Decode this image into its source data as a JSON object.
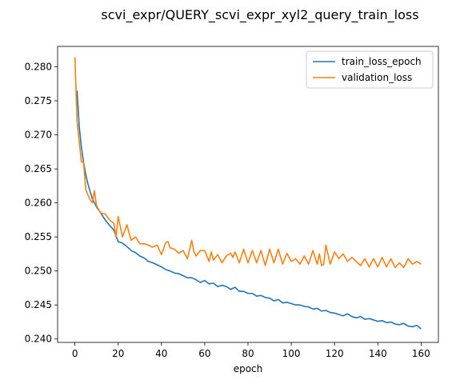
{
  "chart_data": {
    "type": "line",
    "title": "scvi_expr/QUERY_scvi_expr_xyl2_query_train_loss",
    "xlabel": "epoch",
    "ylabel": "",
    "xlim": [
      -8,
      168
    ],
    "ylim": [
      0.2395,
      0.283
    ],
    "xticks": [
      0,
      20,
      40,
      60,
      80,
      100,
      120,
      140,
      160
    ],
    "yticks": [
      0.24,
      0.245,
      0.25,
      0.255,
      0.26,
      0.265,
      0.27,
      0.275,
      0.28
    ],
    "ytick_labels": [
      "0.240",
      "0.245",
      "0.250",
      "0.255",
      "0.260",
      "0.265",
      "0.270",
      "0.275",
      "0.280"
    ],
    "grid": false,
    "legend_position": "top-right",
    "series": [
      {
        "name": "train_loss_epoch",
        "color": "#1f77b4",
        "x": [
          1,
          2,
          3,
          4,
          5,
          6,
          7,
          8,
          9,
          10,
          12,
          14,
          16,
          18,
          20,
          22,
          24,
          26,
          28,
          30,
          32,
          34,
          36,
          38,
          40,
          42,
          44,
          46,
          48,
          50,
          52,
          54,
          56,
          58,
          60,
          62,
          64,
          66,
          68,
          70,
          72,
          74,
          76,
          78,
          80,
          82,
          84,
          86,
          88,
          90,
          92,
          94,
          96,
          98,
          100,
          102,
          104,
          106,
          108,
          110,
          112,
          114,
          116,
          118,
          120,
          122,
          124,
          126,
          128,
          130,
          132,
          134,
          136,
          138,
          140,
          142,
          144,
          146,
          148,
          150,
          152,
          154,
          156,
          158,
          160
        ],
        "y": [
          0.2765,
          0.2712,
          0.2682,
          0.266,
          0.2642,
          0.2628,
          0.2617,
          0.2607,
          0.26,
          0.2594,
          0.2585,
          0.2575,
          0.2567,
          0.256,
          0.2543,
          0.2541,
          0.2536,
          0.253,
          0.2527,
          0.2522,
          0.2519,
          0.2514,
          0.2512,
          0.2509,
          0.2506,
          0.2502,
          0.25,
          0.2497,
          0.2496,
          0.2493,
          0.249,
          0.249,
          0.2487,
          0.2483,
          0.2486,
          0.2481,
          0.2482,
          0.2477,
          0.2479,
          0.2477,
          0.2473,
          0.2476,
          0.247,
          0.247,
          0.2467,
          0.2467,
          0.2463,
          0.2464,
          0.2461,
          0.246,
          0.2456,
          0.2458,
          0.2453,
          0.2454,
          0.2452,
          0.245,
          0.245,
          0.2448,
          0.2447,
          0.2444,
          0.2445,
          0.2441,
          0.2442,
          0.2439,
          0.2438,
          0.2436,
          0.2434,
          0.2437,
          0.2433,
          0.2431,
          0.2433,
          0.2429,
          0.243,
          0.2428,
          0.2426,
          0.2427,
          0.2424,
          0.2425,
          0.2422,
          0.2421,
          0.2423,
          0.2419,
          0.2418,
          0.242,
          0.2415
        ]
      },
      {
        "name": "validation_loss",
        "color": "#ff7f0e",
        "x": [
          0,
          1,
          2,
          3,
          4,
          5,
          6,
          7,
          8,
          9,
          10,
          11,
          12,
          14,
          16,
          18,
          19,
          20,
          21,
          22,
          24,
          26,
          28,
          30,
          32,
          34,
          36,
          38,
          40,
          42,
          43,
          44,
          46,
          48,
          50,
          52,
          54,
          55,
          56,
          58,
          60,
          62,
          63,
          64,
          66,
          68,
          70,
          72,
          73,
          74,
          76,
          78,
          80,
          82,
          84,
          86,
          88,
          90,
          92,
          94,
          96,
          98,
          100,
          102,
          104,
          106,
          108,
          110,
          112,
          113,
          114,
          115,
          116,
          118,
          120,
          122,
          124,
          126,
          128,
          130,
          132,
          134,
          136,
          138,
          140,
          142,
          144,
          146,
          148,
          150,
          152,
          154,
          156,
          158,
          160
        ],
        "y": [
          0.2814,
          0.272,
          0.269,
          0.266,
          0.266,
          0.262,
          0.2612,
          0.2605,
          0.26,
          0.2618,
          0.2596,
          0.259,
          0.2585,
          0.2584,
          0.2575,
          0.257,
          0.255,
          0.258,
          0.2565,
          0.255,
          0.2568,
          0.2545,
          0.255,
          0.254,
          0.254,
          0.2538,
          0.2535,
          0.2538,
          0.2524,
          0.2542,
          0.2543,
          0.2534,
          0.2532,
          0.2526,
          0.253,
          0.2518,
          0.2545,
          0.2528,
          0.2522,
          0.253,
          0.253,
          0.2514,
          0.2528,
          0.2516,
          0.2524,
          0.2512,
          0.2522,
          0.2526,
          0.252,
          0.2528,
          0.2512,
          0.2532,
          0.2512,
          0.253,
          0.2512,
          0.253,
          0.2508,
          0.2532,
          0.2512,
          0.2532,
          0.251,
          0.2526,
          0.2514,
          0.2518,
          0.251,
          0.2522,
          0.251,
          0.253,
          0.251,
          0.2525,
          0.2508,
          0.251,
          0.2538,
          0.251,
          0.2528,
          0.2518,
          0.2525,
          0.2514,
          0.252,
          0.2514,
          0.2508,
          0.2518,
          0.2506,
          0.2518,
          0.2506,
          0.252,
          0.2506,
          0.2518,
          0.2505,
          0.2512,
          0.2505,
          0.2518,
          0.251,
          0.2514,
          0.251
        ]
      }
    ]
  }
}
